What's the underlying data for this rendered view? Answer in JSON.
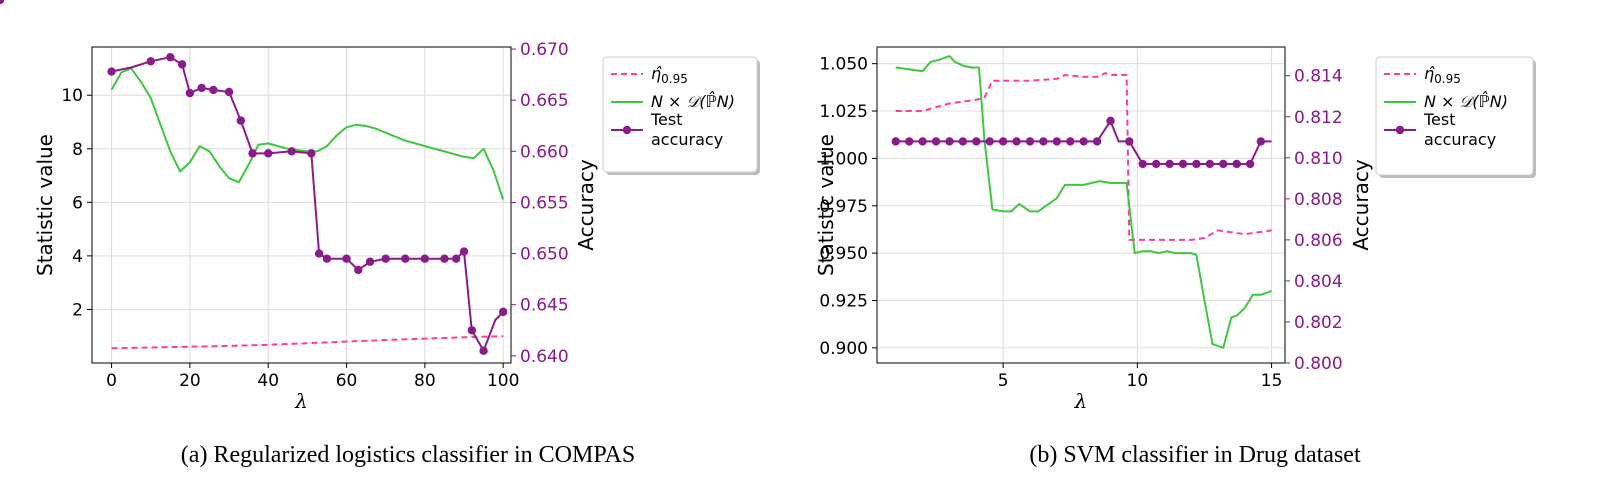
{
  "chart_data": [
    {
      "type": "line",
      "caption": "(a) Regularized logistics classifier in COMPAS",
      "xlabel": "λ",
      "ylabel": "Statistic value",
      "y2label": "Accuracy",
      "xlim": [
        -5,
        102
      ],
      "ylim": [
        0,
        11.8
      ],
      "y2lim": [
        0.6393,
        0.6702
      ],
      "xticks": [
        0,
        20,
        40,
        60,
        80,
        100
      ],
      "yticks": [
        2,
        4,
        6,
        8,
        10
      ],
      "y2ticks": [
        0.64,
        0.645,
        0.65,
        0.655,
        0.66,
        0.665,
        0.67
      ],
      "grid": true,
      "legend_position": "outside-right",
      "series": [
        {
          "name": "η̂0.95",
          "axis": "left",
          "style": "dashed",
          "color": "#ff3c9e",
          "x": [
            0,
            10,
            20,
            30,
            40,
            50,
            60,
            70,
            80,
            90,
            100
          ],
          "y": [
            0.55,
            0.58,
            0.61,
            0.64,
            0.68,
            0.74,
            0.8,
            0.86,
            0.91,
            0.96,
            1.0
          ]
        },
        {
          "name": "N × 𝒟(ℙ̂N)",
          "axis": "left",
          "style": "solid",
          "color": "#3cc93c",
          "x": [
            0,
            2.5,
            5,
            7.5,
            10,
            12.5,
            15,
            17.5,
            20,
            22.5,
            25,
            27.5,
            30,
            32.5,
            35,
            37.5,
            40,
            42.5,
            45,
            47.5,
            50,
            52.5,
            55,
            57.5,
            60,
            62.5,
            65,
            67.5,
            70,
            72.5,
            75,
            77.5,
            80,
            82.5,
            85,
            87.5,
            90,
            92.5,
            95,
            97.5,
            100
          ],
          "y": [
            10.2,
            10.85,
            11.0,
            10.5,
            9.9,
            8.9,
            7.9,
            7.15,
            7.5,
            8.1,
            7.9,
            7.35,
            6.9,
            6.75,
            7.4,
            8.15,
            8.2,
            8.1,
            8.0,
            7.95,
            7.9,
            7.9,
            8.1,
            8.5,
            8.8,
            8.9,
            8.85,
            8.75,
            8.6,
            8.45,
            8.3,
            8.2,
            8.1,
            8.0,
            7.9,
            7.8,
            7.7,
            7.65,
            8.0,
            7.2,
            6.1
          ]
        },
        {
          "name": "Test accuracy",
          "axis": "right",
          "style": "solid-markers",
          "color": "#8b1a8b",
          "markers": [
            0,
            2,
            3,
            4,
            5,
            6,
            7,
            8,
            9,
            10,
            11,
            12,
            13,
            14,
            15,
            16,
            17,
            18,
            19,
            20,
            21,
            22,
            23,
            24,
            25,
            26,
            28,
            29
          ],
          "x": [
            0,
            5,
            10,
            15,
            18,
            20,
            23,
            26,
            30,
            33,
            36,
            40,
            46,
            51,
            53,
            55,
            60,
            63,
            66,
            70,
            75,
            80,
            85,
            88,
            90,
            92,
            95,
            98,
            100
          ],
          "y": [
            0.6678,
            0.6682,
            0.6688,
            0.6692,
            0.6685,
            0.6657,
            0.6662,
            0.666,
            0.6658,
            0.663,
            0.6598,
            0.6598,
            0.66,
            0.6598,
            0.65,
            0.6495,
            0.6495,
            0.6484,
            0.6492,
            0.6495,
            0.6495,
            0.6495,
            0.6495,
            0.6495,
            0.6502,
            0.6425,
            0.6405,
            0.6435,
            0.6443
          ]
        }
      ]
    },
    {
      "type": "line",
      "caption": "(b) SVM classifier in Drug dataset",
      "xlabel": "λ",
      "ylabel": "Statistic value",
      "y2label": "Accuracy",
      "xlim": [
        0.3,
        15.5
      ],
      "ylim": [
        0.892,
        1.0588
      ],
      "y2lim": [
        0.8,
        0.8154
      ],
      "xticks": [
        5,
        10,
        15
      ],
      "yticks": [
        0.9,
        0.925,
        0.95,
        0.975,
        1.0,
        1.025,
        1.05
      ],
      "y2ticks": [
        0.8,
        0.802,
        0.804,
        0.806,
        0.808,
        0.81,
        0.812,
        0.814
      ],
      "grid": true,
      "legend_position": "outside-right",
      "series": [
        {
          "name": "η̂0.95",
          "axis": "left",
          "style": "dashed",
          "color": "#ff3c9e",
          "x": [
            1,
            1.5,
            2,
            2.5,
            3,
            3.5,
            4,
            4.3,
            4.6,
            5,
            6,
            7,
            7.3,
            8,
            8.5,
            8.8,
            9,
            9.6,
            9.7,
            10,
            10.5,
            11,
            11.5,
            12,
            12.5,
            13,
            13.5,
            14,
            14.5,
            15
          ],
          "y": [
            1.025,
            1.025,
            1.025,
            1.027,
            1.029,
            1.03,
            1.031,
            1.032,
            1.041,
            1.041,
            1.041,
            1.042,
            1.044,
            1.043,
            1.043,
            1.045,
            1.044,
            1.044,
            0.957,
            0.957,
            0.957,
            0.957,
            0.957,
            0.957,
            0.958,
            0.962,
            0.961,
            0.96,
            0.961,
            0.962
          ]
        },
        {
          "name": "N × 𝒟(ℙ̂N)",
          "axis": "left",
          "style": "solid",
          "color": "#3cc93c",
          "x": [
            1,
            1.5,
            2,
            2.3,
            2.6,
            3,
            3.2,
            3.5,
            3.8,
            4.1,
            4.3,
            4.6,
            5,
            5.3,
            5.6,
            6,
            6.3,
            6.6,
            7,
            7.3,
            7.6,
            8,
            8.3,
            8.6,
            9,
            9.3,
            9.6,
            9.9,
            10.2,
            10.5,
            10.8,
            11.1,
            11.4,
            11.7,
            12,
            12.2,
            12.5,
            12.8,
            13,
            13.2,
            13.5,
            13.7,
            14,
            14.3,
            14.6,
            15
          ],
          "y": [
            1.048,
            1.047,
            1.046,
            1.051,
            1.052,
            1.054,
            1.051,
            1.049,
            1.048,
            1.048,
            1.01,
            0.973,
            0.972,
            0.972,
            0.976,
            0.972,
            0.972,
            0.975,
            0.979,
            0.986,
            0.986,
            0.986,
            0.987,
            0.988,
            0.987,
            0.987,
            0.987,
            0.95,
            0.951,
            0.951,
            0.95,
            0.951,
            0.95,
            0.95,
            0.95,
            0.949,
            0.925,
            0.902,
            0.901,
            0.9,
            0.916,
            0.917,
            0.921,
            0.928,
            0.928,
            0.93
          ]
        },
        {
          "name": "Test accuracy",
          "axis": "right",
          "style": "solid-markers",
          "color": "#8b1a8b",
          "x": [
            1,
            1.5,
            2,
            2.5,
            3,
            3.5,
            4,
            4.5,
            5,
            5.5,
            6,
            6.5,
            7,
            7.5,
            8,
            8.5,
            9,
            9.3,
            9.7,
            10.2,
            10.7,
            11.2,
            11.7,
            12.2,
            12.7,
            13.2,
            13.7,
            14.2,
            14.6,
            15
          ],
          "y": [
            0.8108,
            0.8108,
            0.8108,
            0.8108,
            0.8108,
            0.8108,
            0.8108,
            0.8108,
            0.8108,
            0.8108,
            0.8108,
            0.8108,
            0.8108,
            0.8108,
            0.8108,
            0.8108,
            0.8118,
            0.8108,
            0.8108,
            0.8097,
            0.8097,
            0.8097,
            0.8097,
            0.8097,
            0.8097,
            0.8097,
            0.8097,
            0.8097,
            0.8108,
            0.8108
          ],
          "markers": [
            0,
            1,
            2,
            3,
            4,
            5,
            6,
            7,
            8,
            9,
            10,
            11,
            12,
            13,
            14,
            15,
            16,
            18,
            19,
            20,
            21,
            22,
            23,
            24,
            25,
            26,
            27,
            28
          ]
        }
      ]
    }
  ]
}
